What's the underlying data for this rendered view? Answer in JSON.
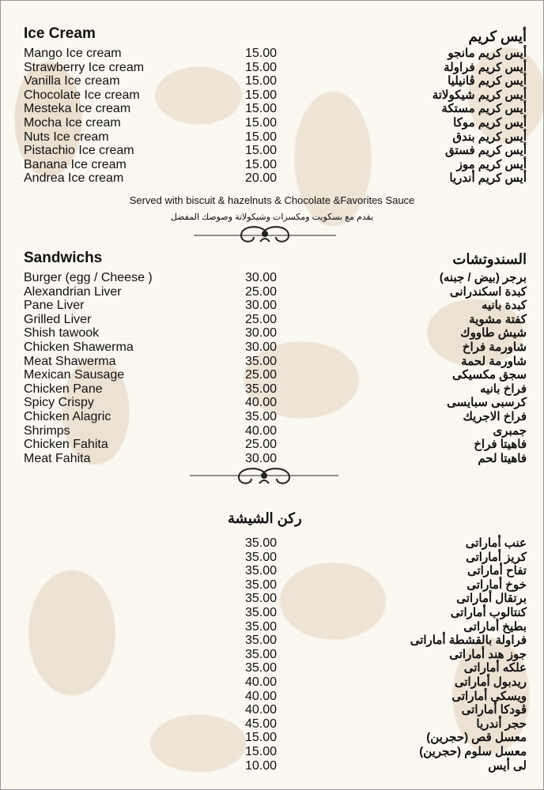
{
  "ice_cream": {
    "title_en": "Ice Cream",
    "title_ar": "أيس كريم",
    "items": [
      {
        "en": "Mango Ice cream",
        "price": "15.00",
        "ar": "أيس كريم مانجو"
      },
      {
        "en": "Strawberry Ice cream",
        "price": "15.00",
        "ar": "أيس كريم فراولة"
      },
      {
        "en": "Vanilla Ice cream",
        "price": "15.00",
        "ar": "أيس كريم ڤانيليا"
      },
      {
        "en": "Chocolate Ice cream",
        "price": "15.00",
        "ar": "أيس كريم شيكولاتة"
      },
      {
        "en": "Mesteka Ice cream",
        "price": "15.00",
        "ar": "أيس كريم مستكة"
      },
      {
        "en": "Mocha Ice cream",
        "price": "15.00",
        "ar": "أيس كريم موكا"
      },
      {
        "en": "Nuts Ice cream",
        "price": "15.00",
        "ar": "أيس كريم بندق"
      },
      {
        "en": "Pistachio Ice cream",
        "price": "15.00",
        "ar": "أيس كريم فستق"
      },
      {
        "en": "Banana Ice cream",
        "price": "15.00",
        "ar": "أيس كريم موز"
      },
      {
        "en": "Andrea Ice cream",
        "price": "20.00",
        "ar": "أيس كريم أندريا"
      }
    ],
    "note_en": "Served with biscuit & hazelnuts & Chocolate &Favorites Sauce",
    "note_ar": "يقدم مع بسكويت ومكسرات وشيكولاتة وصوصك المفضل"
  },
  "sandwiches": {
    "title_en": "Sandwichs",
    "title_ar": "السندوتشات",
    "items": [
      {
        "en": "Burger (egg / Cheese )",
        "price": "30.00",
        "ar": "برجر (بيض / جبنه)"
      },
      {
        "en": "Alexandrian Liver",
        "price": "25.00",
        "ar": "كبدة اسكندرانى"
      },
      {
        "en": "Pane Liver",
        "price": "30.00",
        "ar": "كبدة بانيه"
      },
      {
        "en": "Grilled Liver",
        "price": "25.00",
        "ar": "كفتة مشوية"
      },
      {
        "en": "Shish tawook",
        "price": "30.00",
        "ar": "شيش طاووك"
      },
      {
        "en": "Chicken Shawerma",
        "price": "30.00",
        "ar": "شاورمة فراخ"
      },
      {
        "en": "Meat Shawerma",
        "price": "35.00",
        "ar": "شاورمة لحمة"
      },
      {
        "en": "Mexican Sausage",
        "price": "25.00",
        "ar": "سجق مكسيكى"
      },
      {
        "en": "Chicken Pane",
        "price": "35.00",
        "ar": "فراخ بانيه"
      },
      {
        "en": "Spicy Crispy",
        "price": "40.00",
        "ar": "كرسبى سبايسى"
      },
      {
        "en": "Chicken Alagric",
        "price": "35.00",
        "ar": "فراخ الاجريك"
      },
      {
        "en": "Shrimps",
        "price": "40.00",
        "ar": "جمبرى"
      },
      {
        "en": "Chicken Fahita",
        "price": "25.00",
        "ar": "فاهيتا فراخ"
      },
      {
        "en": "Meat Fahita",
        "price": "30.00",
        "ar": "فاهيتا لحم"
      }
    ]
  },
  "shisha": {
    "title_ar": "ركن الشيشة",
    "items": [
      {
        "price": "35.00",
        "ar": "عنب أماراتى"
      },
      {
        "price": "35.00",
        "ar": "كريز أماراتى"
      },
      {
        "price": "35.00",
        "ar": "تفاح أماراتى"
      },
      {
        "price": "35.00",
        "ar": "خوخ أماراتى"
      },
      {
        "price": "35.00",
        "ar": "برتقال أماراتى"
      },
      {
        "price": "35.00",
        "ar": "كنتالوب أماراتى"
      },
      {
        "price": "35.00",
        "ar": "بطيخ أماراتى"
      },
      {
        "price": "35.00",
        "ar": "فراولة بالقشطة أماراتى"
      },
      {
        "price": "35.00",
        "ar": "جوز هند أماراتى"
      },
      {
        "price": "35.00",
        "ar": "علكه أماراتى"
      },
      {
        "price": "40.00",
        "ar": "ريدبول أماراتى"
      },
      {
        "price": "40.00",
        "ar": "ويسكى أماراتى"
      },
      {
        "price": "40.00",
        "ar": "ڤودكا أماراتى"
      },
      {
        "price": "45.00",
        "ar": "حجر أندريا"
      },
      {
        "price": "15.00",
        "ar": "معسل قص (حجرين)"
      },
      {
        "price": "15.00",
        "ar": "معسل سلوم (حجرين)"
      },
      {
        "price": "10.00",
        "ar": "لى أيس"
      }
    ]
  },
  "colors": {
    "background": "#fbf8f2",
    "pattern": "#dccdb4",
    "text": "#111111"
  }
}
